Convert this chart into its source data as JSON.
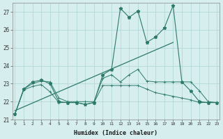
{
  "xlabel": "Humidex (Indice chaleur)",
  "x": [
    0,
    1,
    2,
    3,
    4,
    5,
    6,
    7,
    8,
    9,
    10,
    11,
    12,
    13,
    14,
    15,
    16,
    17,
    18,
    19,
    20,
    21,
    22,
    23
  ],
  "line_max": [
    21.3,
    22.7,
    23.1,
    23.2,
    23.0,
    22.0,
    21.95,
    21.95,
    21.85,
    21.95,
    23.5,
    23.8,
    27.2,
    26.7,
    27.05,
    25.3,
    25.6,
    26.1,
    27.35,
    23.1,
    22.6,
    22.0,
    21.95,
    21.95
  ],
  "line_mid": [
    21.3,
    22.7,
    23.0,
    23.15,
    23.1,
    22.2,
    22.0,
    22.0,
    22.0,
    22.0,
    23.3,
    23.5,
    23.1,
    23.5,
    23.8,
    23.15,
    23.1,
    23.1,
    23.1,
    23.1,
    23.1,
    22.6,
    22.0,
    21.95
  ],
  "line_min": [
    21.3,
    22.65,
    22.85,
    22.95,
    22.55,
    21.95,
    21.95,
    21.95,
    21.85,
    21.95,
    22.9,
    22.9,
    22.9,
    22.9,
    22.9,
    22.7,
    22.5,
    22.4,
    22.3,
    22.2,
    22.1,
    21.95,
    21.95,
    21.95
  ],
  "line_trend_x": [
    0,
    18
  ],
  "line_trend_y": [
    21.5,
    25.3
  ],
  "color": "#2d7a6a",
  "bg_color": "#d6eeee",
  "grid_color": "#aed4d4",
  "ylim": [
    21.0,
    27.5
  ],
  "yticks": [
    21,
    22,
    23,
    24,
    25,
    26,
    27
  ],
  "xlim": [
    -0.3,
    23.3
  ]
}
